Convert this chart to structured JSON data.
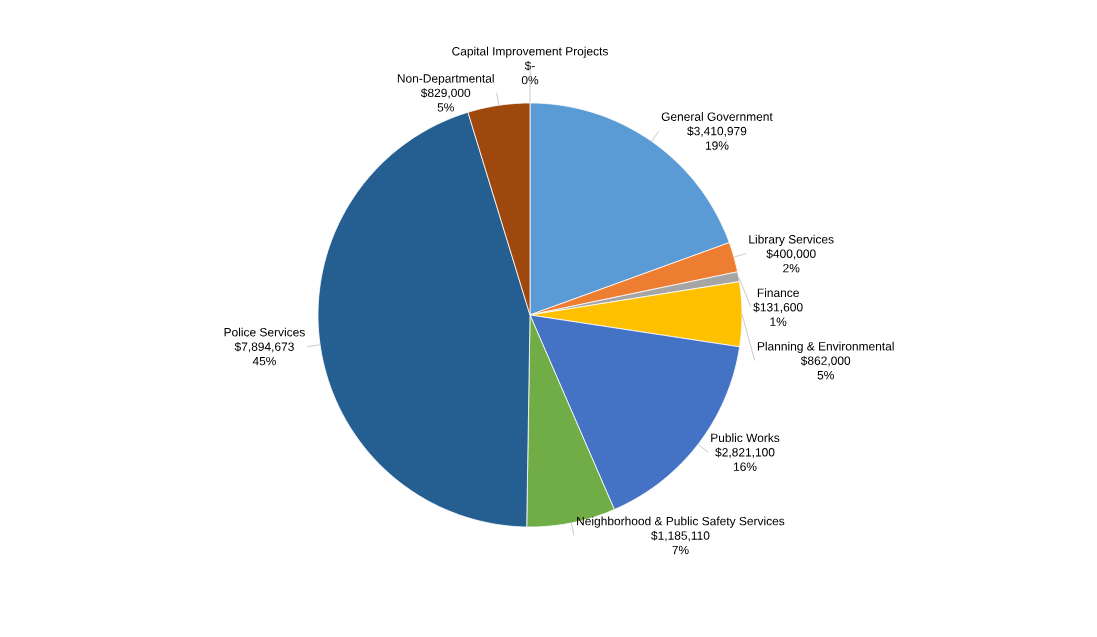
{
  "chart_data": {
    "type": "pie",
    "categories": [
      "Capital Improvement Projects",
      "General Government",
      "Library Services",
      "Finance",
      "Planning & Environmental",
      "Public Works",
      "Neighborhood & Public Safety Services",
      "Police Services",
      "Non-Departmental"
    ],
    "values": [
      0,
      3410979,
      400000,
      131600,
      862000,
      2821100,
      1185110,
      7894673,
      829000
    ],
    "colors": [
      "#7f7f7f",
      "#5b9bd5",
      "#ed7d31",
      "#a5a5a5",
      "#ffc000",
      "#4472c4",
      "#70ad47",
      "#255e91",
      "#9e480e"
    ],
    "value_labels": [
      "$-",
      "$3,410,979",
      "$400,000",
      "$131,600",
      "$862,000",
      "$2,821,100",
      "$1,185,110",
      "$7,894,673",
      "$829,000"
    ],
    "annotations": [
      "0%",
      "19%",
      "2%",
      "1%",
      "5%",
      "16%",
      "7%",
      "45%",
      "5%"
    ]
  }
}
